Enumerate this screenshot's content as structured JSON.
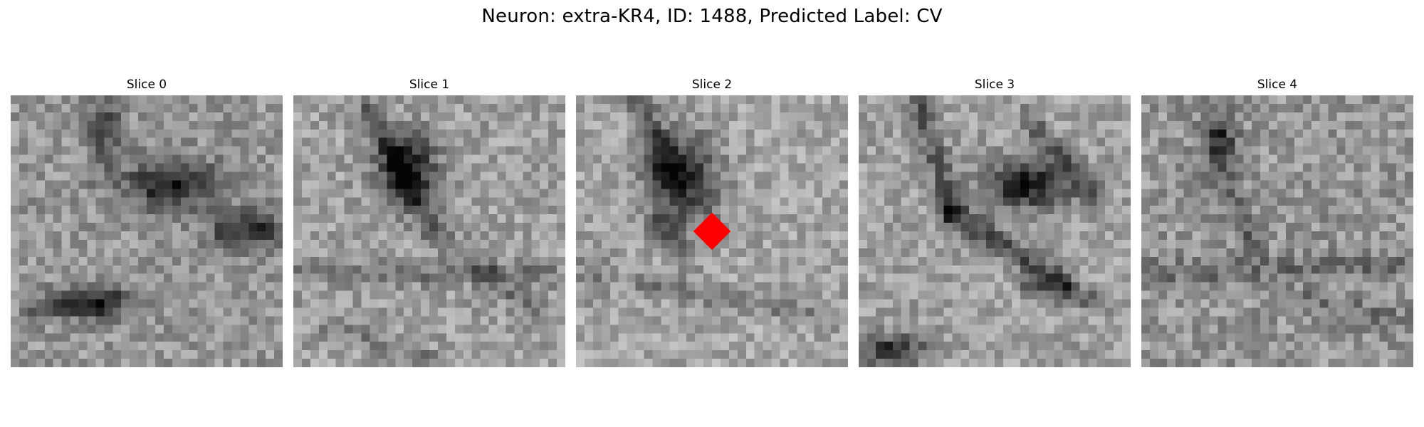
{
  "title": "Neuron: extra-KR4, ID: 1488, Predicted Label: CV",
  "marker_color": "#ff0000",
  "panels": [
    {
      "label": "Slice 0"
    },
    {
      "label": "Slice 1"
    },
    {
      "label": "Slice 2"
    },
    {
      "label": "Slice 3"
    },
    {
      "label": "Slice 4"
    }
  ]
}
